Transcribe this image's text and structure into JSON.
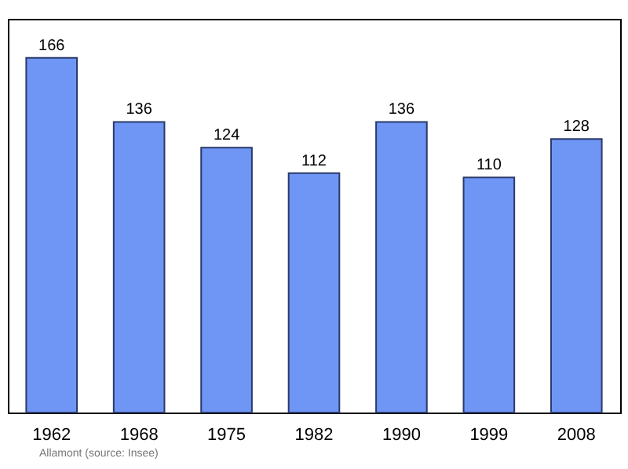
{
  "chart_data": {
    "type": "bar",
    "categories": [
      "1962",
      "1968",
      "1975",
      "1982",
      "1990",
      "1999",
      "2008"
    ],
    "values": [
      166,
      136,
      124,
      112,
      136,
      110,
      128
    ],
    "color": "#6f95f5",
    "data_labels": true,
    "annotations": [
      "Allamont    (source: Insee)"
    ]
  }
}
